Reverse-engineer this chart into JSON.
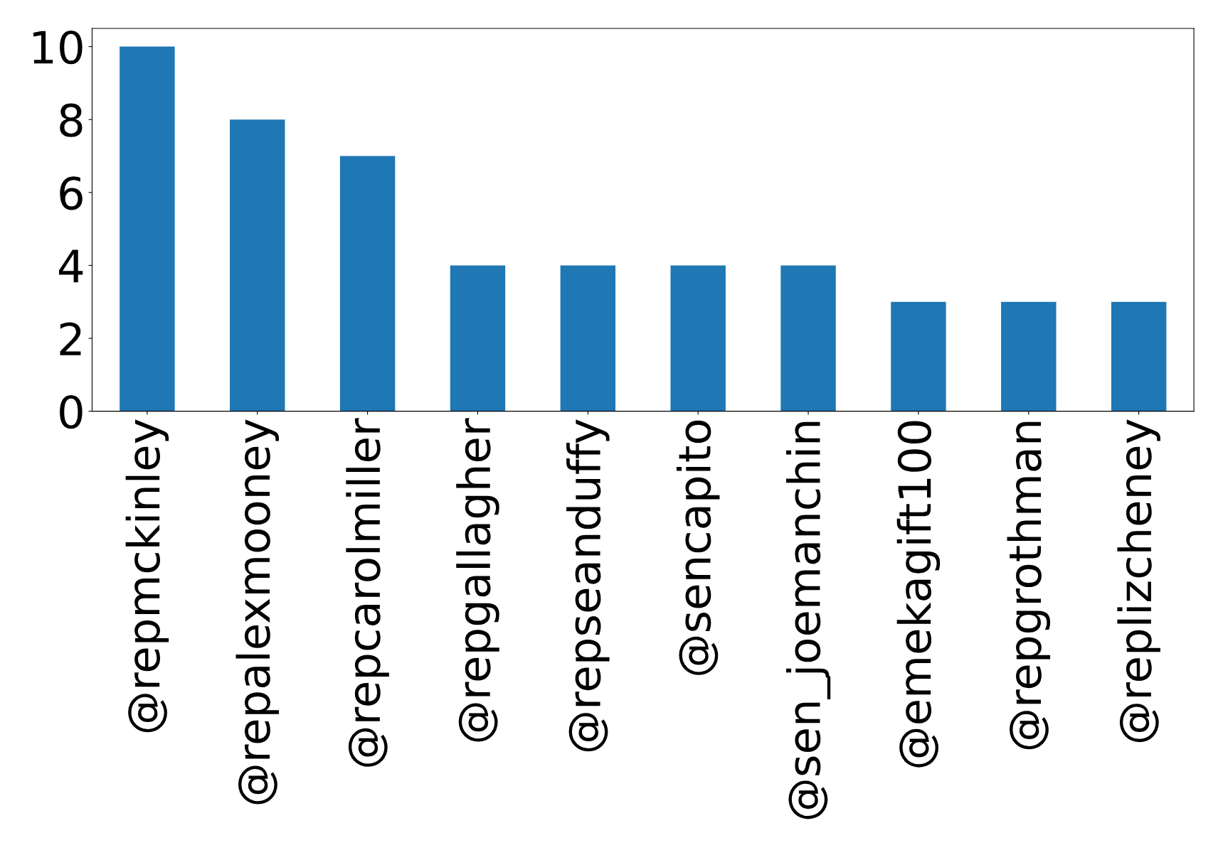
{
  "chart_data": {
    "type": "bar",
    "categories": [
      "@repmckinley",
      "@repalexmooney",
      "@repcarolmiller",
      "@repgallagher",
      "@repseanduffy",
      "@sencapito",
      "@sen_joemanchin",
      "@emekagift100",
      "@repgrothman",
      "@replizcheney"
    ],
    "values": [
      10,
      8,
      7,
      4,
      4,
      4,
      4,
      3,
      3,
      3
    ],
    "color": "#1f77b4",
    "ylim": [
      0,
      10.5
    ],
    "yticks": [
      0,
      2,
      4,
      6,
      8,
      10
    ],
    "grid": false,
    "legend": false
  }
}
